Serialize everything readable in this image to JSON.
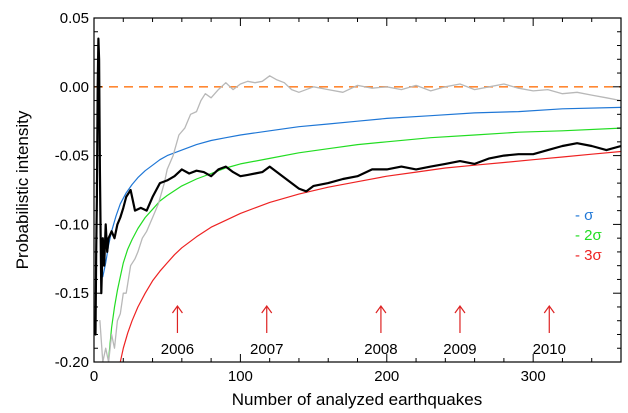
{
  "chart_data": {
    "type": "line",
    "title": "",
    "xlabel": "Number of analyzed earthquakes",
    "ylabel": "Probabilistic intensity",
    "xlim": [
      0,
      360
    ],
    "ylim": [
      -0.2,
      0.05
    ],
    "x_ticks": [
      0,
      100,
      200,
      300
    ],
    "x_tick_labels": [
      "0",
      "100",
      "200",
      "300"
    ],
    "y_ticks": [
      -0.2,
      -0.15,
      -0.1,
      -0.05,
      0.0,
      0.05
    ],
    "y_tick_labels": [
      "-0.20",
      "-0.15",
      "-0.10",
      "-0.05",
      "0.00",
      "0.05"
    ],
    "grid": false,
    "legend_position": "right",
    "series": [
      {
        "name": "σ",
        "legend_label": "- σ",
        "color": "#1f77d6",
        "width": 1.2,
        "x": [
          6,
          8,
          10,
          12,
          15,
          18,
          22,
          26,
          30,
          35,
          40,
          45,
          50,
          60,
          70,
          80,
          90,
          100,
          120,
          140,
          160,
          180,
          200,
          230,
          260,
          290,
          320,
          360
        ],
        "y": [
          -0.138,
          -0.128,
          -0.115,
          -0.105,
          -0.094,
          -0.085,
          -0.077,
          -0.071,
          -0.066,
          -0.061,
          -0.057,
          -0.053,
          -0.05,
          -0.046,
          -0.042,
          -0.039,
          -0.037,
          -0.035,
          -0.032,
          -0.029,
          -0.027,
          -0.025,
          -0.023,
          -0.021,
          -0.019,
          -0.018,
          -0.016,
          -0.015
        ]
      },
      {
        "name": "2σ",
        "legend_label": "- 2σ",
        "color": "#22dd22",
        "width": 1.2,
        "x": [
          10,
          12,
          14,
          16,
          18,
          20,
          23,
          26,
          30,
          35,
          40,
          45,
          50,
          60,
          70,
          80,
          90,
          100,
          120,
          140,
          160,
          180,
          200,
          230,
          260,
          290,
          320,
          360
        ],
        "y": [
          -0.198,
          -0.175,
          -0.16,
          -0.148,
          -0.138,
          -0.128,
          -0.118,
          -0.111,
          -0.103,
          -0.095,
          -0.089,
          -0.083,
          -0.079,
          -0.072,
          -0.067,
          -0.063,
          -0.059,
          -0.056,
          -0.052,
          -0.048,
          -0.045,
          -0.042,
          -0.04,
          -0.037,
          -0.035,
          -0.033,
          -0.032,
          -0.03
        ]
      },
      {
        "name": "3σ",
        "legend_label": "- 3σ",
        "color": "#ee2222",
        "width": 1.2,
        "x": [
          18,
          20,
          23,
          26,
          30,
          35,
          40,
          45,
          50,
          55,
          60,
          70,
          80,
          90,
          100,
          110,
          120,
          140,
          160,
          180,
          200,
          220,
          240,
          260,
          280,
          300,
          320,
          340,
          360
        ],
        "y": [
          -0.2,
          -0.19,
          -0.179,
          -0.17,
          -0.16,
          -0.15,
          -0.141,
          -0.134,
          -0.128,
          -0.122,
          -0.117,
          -0.109,
          -0.102,
          -0.097,
          -0.092,
          -0.088,
          -0.084,
          -0.078,
          -0.073,
          -0.069,
          -0.065,
          -0.062,
          -0.059,
          -0.057,
          -0.055,
          -0.053,
          -0.051,
          -0.049,
          -0.047
        ]
      },
      {
        "name": "",
        "color": "#b8b8b8",
        "width": 1.3,
        "x": [
          4,
          6,
          8,
          10,
          12,
          14,
          16,
          18,
          20,
          22,
          25,
          28,
          30,
          33,
          36,
          40,
          44,
          48,
          50,
          54,
          58,
          62,
          66,
          70,
          73,
          76,
          80,
          85,
          90,
          95,
          100,
          105,
          110,
          115,
          120,
          125,
          130,
          135,
          140,
          150,
          160,
          170,
          180,
          190,
          200,
          210,
          220,
          230,
          240,
          250,
          260,
          270,
          280,
          290,
          300,
          310,
          320,
          330,
          340,
          350,
          360
        ],
        "y": [
          -0.17,
          -0.2,
          -0.19,
          -0.2,
          -0.18,
          -0.19,
          -0.17,
          -0.165,
          -0.15,
          -0.15,
          -0.13,
          -0.125,
          -0.12,
          -0.11,
          -0.105,
          -0.095,
          -0.085,
          -0.07,
          -0.06,
          -0.05,
          -0.035,
          -0.03,
          -0.02,
          -0.018,
          -0.01,
          -0.005,
          -0.008,
          -0.002,
          0.003,
          -0.002,
          0.002,
          0.004,
          0.003,
          0.004,
          0.008,
          0.005,
          0.003,
          -0.002,
          -0.004,
          0.0,
          -0.002,
          -0.004,
          0.001,
          -0.001,
          0.0,
          -0.002,
          0.001,
          -0.003,
          0.0,
          0.002,
          -0.002,
          0.0,
          0.002,
          -0.001,
          -0.003,
          -0.002,
          -0.005,
          -0.004,
          -0.006,
          -0.008,
          -0.01
        ]
      },
      {
        "name": "",
        "color": "#000000",
        "width": 2.2,
        "x": [
          1,
          1.5,
          2,
          2.5,
          3,
          3.5,
          4,
          5,
          6,
          7,
          8,
          9,
          10,
          12,
          14,
          16,
          18,
          20,
          22,
          25,
          28,
          32,
          36,
          40,
          45,
          50,
          55,
          60,
          65,
          70,
          75,
          80,
          85,
          90,
          95,
          100,
          105,
          110,
          115,
          120,
          125,
          130,
          135,
          140,
          145,
          150,
          160,
          170,
          180,
          190,
          200,
          210,
          220,
          230,
          240,
          250,
          260,
          270,
          280,
          290,
          300,
          310,
          320,
          330,
          340,
          350,
          360
        ],
        "y": [
          -0.18,
          -0.12,
          -0.08,
          0.0,
          0.035,
          0.02,
          -0.06,
          -0.15,
          -0.11,
          -0.13,
          -0.1,
          -0.12,
          -0.11,
          -0.105,
          -0.11,
          -0.1,
          -0.095,
          -0.088,
          -0.08,
          -0.075,
          -0.09,
          -0.088,
          -0.09,
          -0.08,
          -0.07,
          -0.068,
          -0.065,
          -0.06,
          -0.063,
          -0.061,
          -0.062,
          -0.065,
          -0.06,
          -0.058,
          -0.062,
          -0.065,
          -0.064,
          -0.063,
          -0.062,
          -0.058,
          -0.062,
          -0.066,
          -0.07,
          -0.074,
          -0.076,
          -0.072,
          -0.07,
          -0.067,
          -0.065,
          -0.06,
          -0.06,
          -0.058,
          -0.06,
          -0.058,
          -0.056,
          -0.054,
          -0.056,
          -0.052,
          -0.05,
          -0.049,
          -0.049,
          -0.046,
          -0.043,
          -0.041,
          -0.043,
          -0.046,
          -0.043
        ]
      }
    ],
    "reference_line": {
      "y": 0.0,
      "color": "#ff8833",
      "style": "dashed"
    },
    "annotations": [
      {
        "label": "2006",
        "x": 57,
        "arrow_color": "#dd2222"
      },
      {
        "label": "2007",
        "x": 118,
        "arrow_color": "#dd2222"
      },
      {
        "label": "2008",
        "x": 196,
        "arrow_color": "#dd2222"
      },
      {
        "label": "2009",
        "x": 250,
        "arrow_color": "#dd2222"
      },
      {
        "label": "2010",
        "x": 311,
        "arrow_color": "#dd2222"
      }
    ]
  }
}
